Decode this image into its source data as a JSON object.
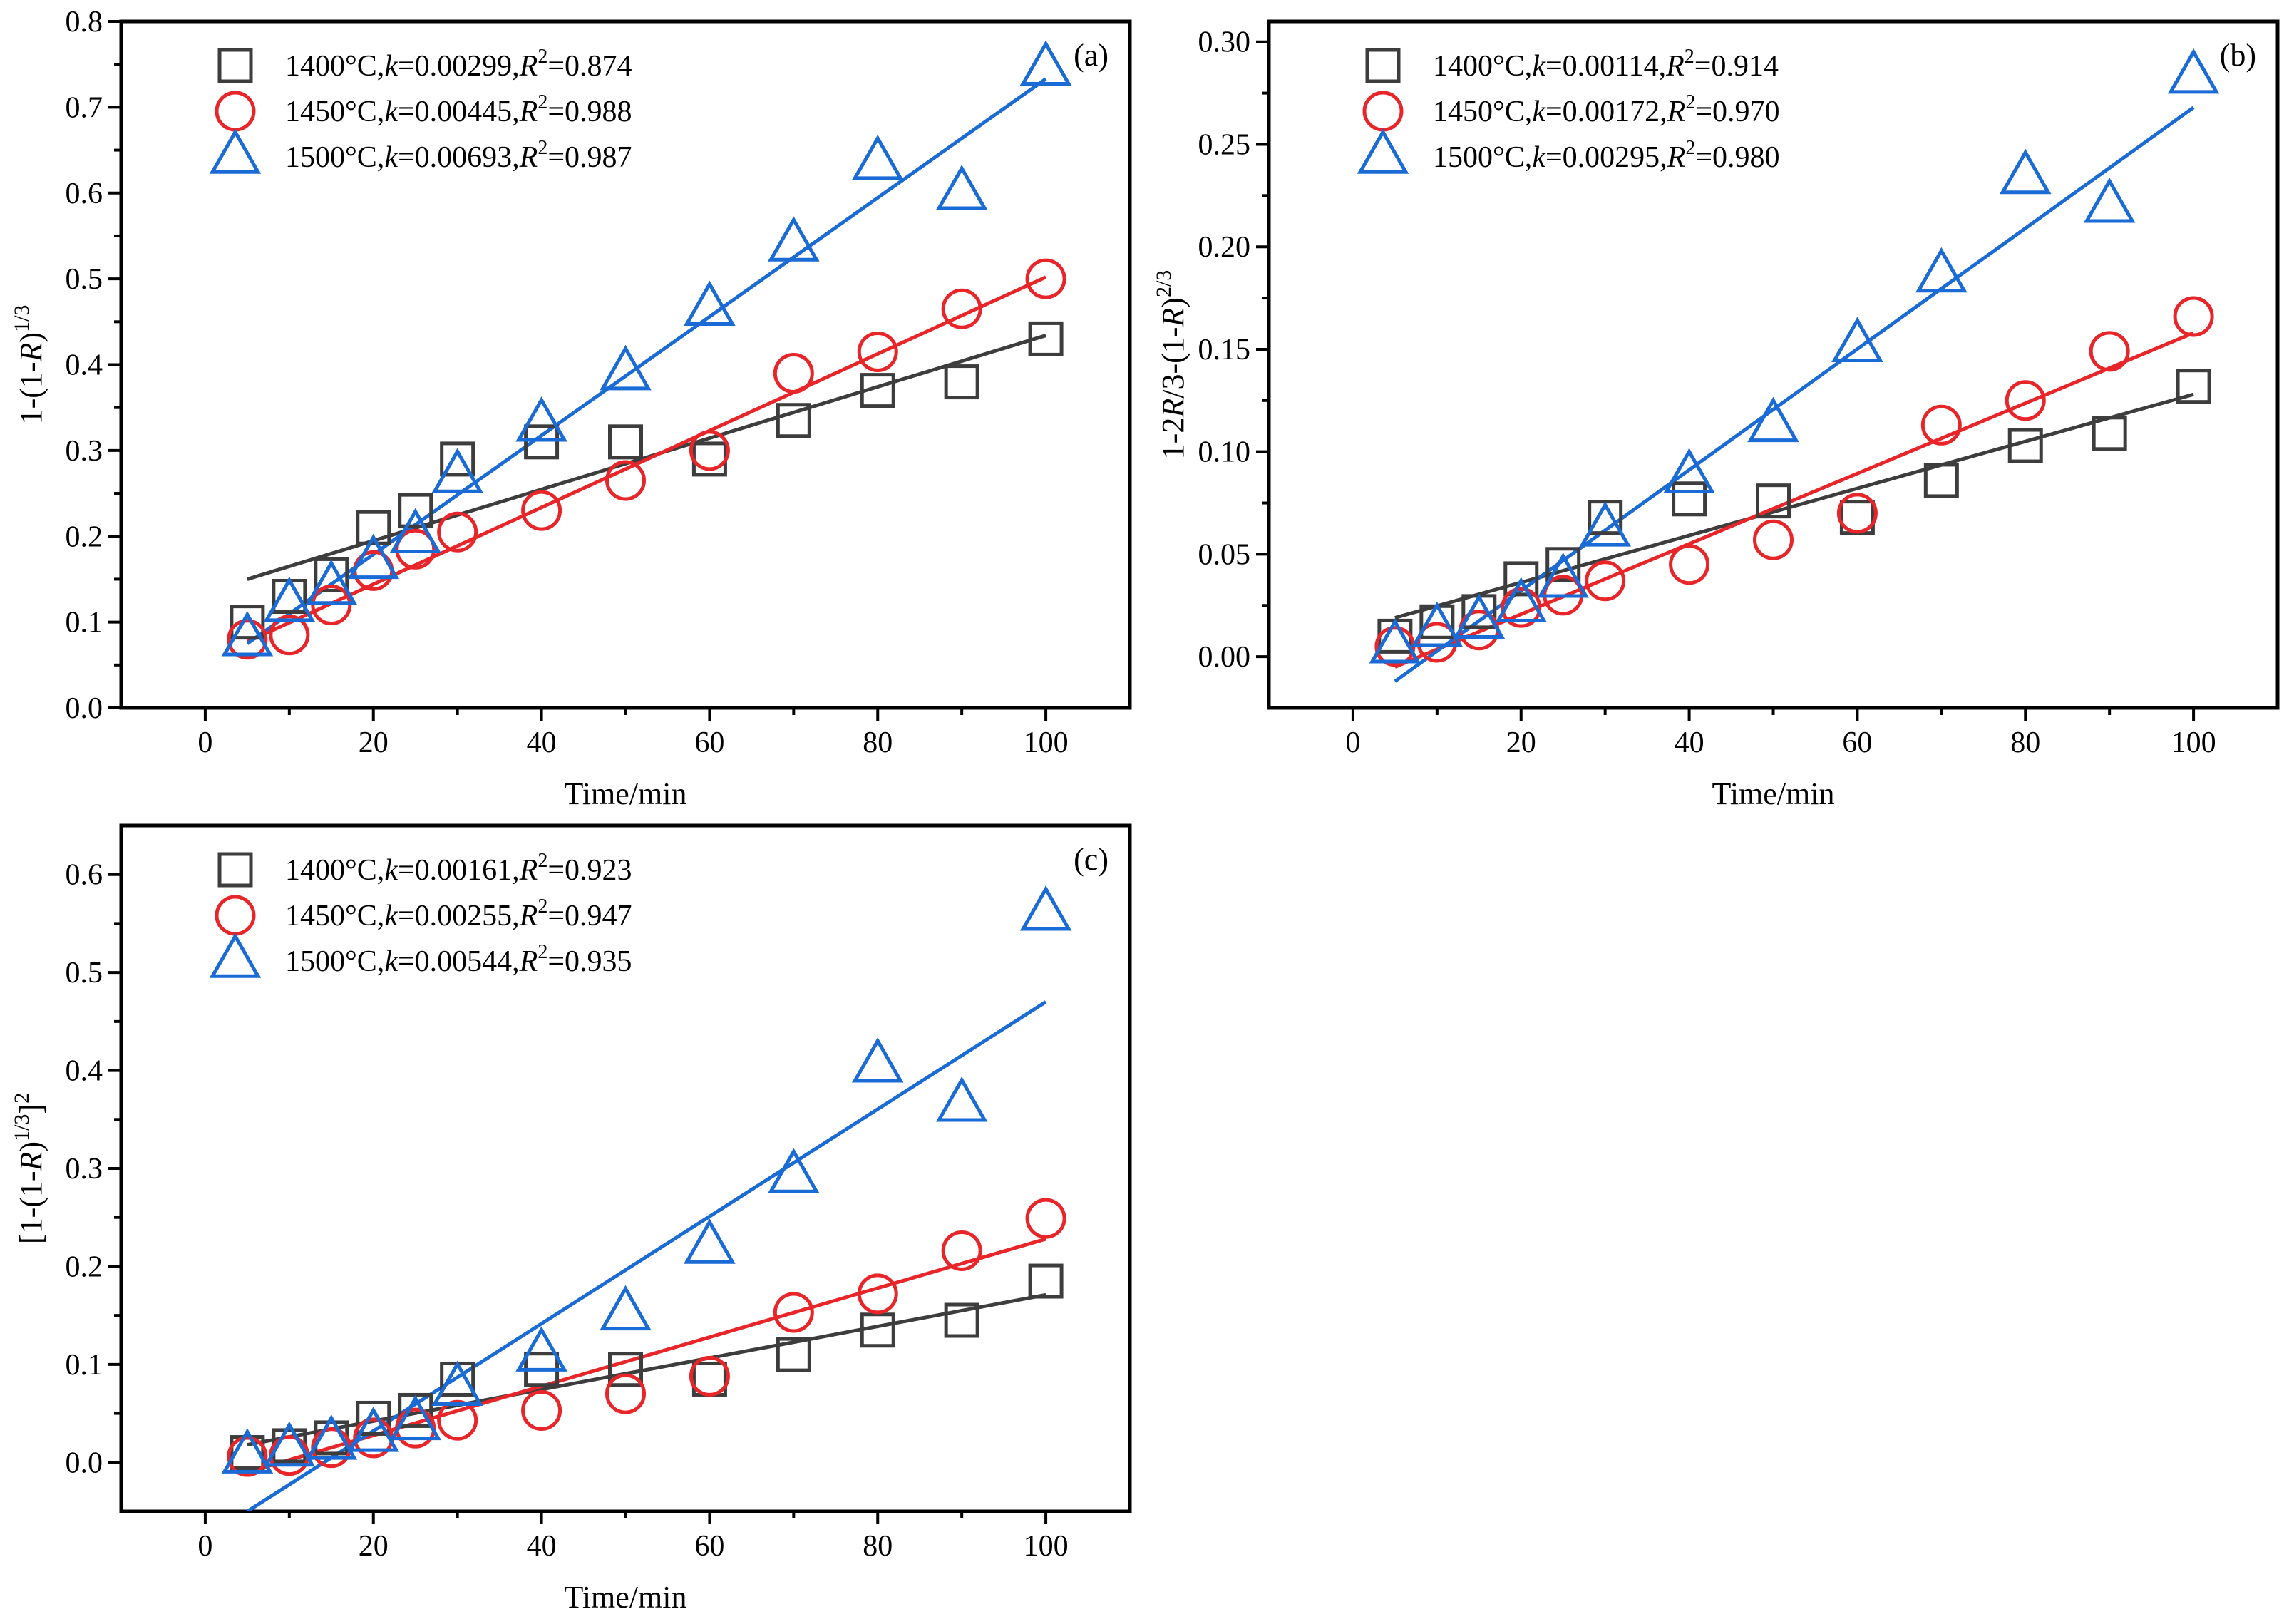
{
  "colors": {
    "s1400": "#3d3d3d",
    "s1450": "#e8262a",
    "s1500": "#1a6bd6"
  },
  "chart_data": [
    {
      "type": "scatter",
      "panel_label": "(a)",
      "xlabel": "Time/min",
      "ylabel": {
        "pre": "1-(1-",
        "it": "R",
        "post": ")",
        "sup": "1/3"
      },
      "xlim": [
        -10,
        110
      ],
      "ylim": [
        0,
        0.8
      ],
      "xticks": [
        0,
        20,
        40,
        60,
        80,
        100
      ],
      "yticks": [
        0.0,
        0.1,
        0.2,
        0.3,
        0.4,
        0.5,
        0.6,
        0.7,
        0.8
      ],
      "ytick_labels": [
        "0.0",
        "0.1",
        "0.2",
        "0.3",
        "0.4",
        "0.5",
        "0.6",
        "0.7",
        "0.8"
      ],
      "legend_position": "top-left",
      "series": [
        {
          "name": "1400°C",
          "marker": "square",
          "color": "#3d3d3d",
          "k": "0.00299",
          "r2": "0.874",
          "x": [
            5,
            10,
            15,
            20,
            25,
            30,
            40,
            50,
            60,
            70,
            80,
            90,
            100
          ],
          "y": [
            0.1,
            0.13,
            0.155,
            0.21,
            0.23,
            0.29,
            0.31,
            0.31,
            0.29,
            0.335,
            0.37,
            0.38,
            0.43
          ],
          "fit": [
            [
              5,
              0.15
            ],
            [
              100,
              0.434
            ]
          ]
        },
        {
          "name": "1450°C",
          "marker": "circle",
          "color": "#e8262a",
          "k": "0.00445",
          "r2": "0.988",
          "x": [
            5,
            10,
            15,
            20,
            25,
            30,
            40,
            50,
            60,
            70,
            80,
            90,
            100
          ],
          "y": [
            0.08,
            0.085,
            0.12,
            0.16,
            0.185,
            0.205,
            0.23,
            0.265,
            0.3,
            0.39,
            0.415,
            0.465,
            0.5
          ],
          "fit": [
            [
              5,
              0.077
            ],
            [
              100,
              0.502
            ]
          ]
        },
        {
          "name": "1500°C",
          "marker": "triangle",
          "color": "#1a6bd6",
          "k": "0.00693",
          "r2": "0.987",
          "x": [
            5,
            10,
            15,
            20,
            25,
            30,
            40,
            50,
            60,
            70,
            80,
            90,
            100
          ],
          "y": [
            0.08,
            0.12,
            0.14,
            0.17,
            0.2,
            0.27,
            0.33,
            0.39,
            0.465,
            0.54,
            0.635,
            0.6,
            0.745
          ],
          "fit": [
            [
              5,
              0.075
            ],
            [
              100,
              0.733
            ]
          ]
        }
      ]
    },
    {
      "type": "scatter",
      "panel_label": "(b)",
      "xlabel": "Time/min",
      "ylabel": {
        "pre": "1-2",
        "it": "R",
        "post": "/3-(1-",
        "it2": "R",
        "post2": ")",
        "sup": "2/3"
      },
      "xlim": [
        -10,
        110
      ],
      "ylim": [
        -0.025,
        0.31
      ],
      "xticks": [
        0,
        20,
        40,
        60,
        80,
        100
      ],
      "yticks": [
        0.0,
        0.05,
        0.1,
        0.15,
        0.2,
        0.25,
        0.3
      ],
      "ytick_labels": [
        "0.00",
        "0.05",
        "0.10",
        "0.15",
        "0.20",
        "0.25",
        "0.30"
      ],
      "legend_position": "top-left",
      "series": [
        {
          "name": "1400°C",
          "marker": "square",
          "color": "#3d3d3d",
          "k": "0.00114",
          "r2": "0.914",
          "x": [
            5,
            10,
            15,
            20,
            25,
            30,
            40,
            50,
            60,
            70,
            80,
            90,
            100
          ],
          "y": [
            0.01,
            0.017,
            0.022,
            0.038,
            0.045,
            0.068,
            0.077,
            0.076,
            0.068,
            0.086,
            0.103,
            0.109,
            0.132
          ],
          "fit": [
            [
              5,
              0.019
            ],
            [
              100,
              0.128
            ]
          ]
        },
        {
          "name": "1450°C",
          "marker": "circle",
          "color": "#e8262a",
          "k": "0.00172",
          "r2": "0.970",
          "x": [
            5,
            10,
            15,
            20,
            25,
            30,
            40,
            50,
            60,
            70,
            80,
            90,
            100
          ],
          "y": [
            0.005,
            0.007,
            0.013,
            0.024,
            0.03,
            0.037,
            0.045,
            0.057,
            0.07,
            0.113,
            0.125,
            0.149,
            0.166
          ],
          "fit": [
            [
              5,
              -0.005
            ],
            [
              100,
              0.158
            ]
          ]
        },
        {
          "name": "1500°C",
          "marker": "triangle",
          "color": "#1a6bd6",
          "k": "0.00295",
          "r2": "0.980",
          "x": [
            5,
            10,
            15,
            20,
            25,
            30,
            40,
            50,
            60,
            70,
            80,
            90,
            100
          ],
          "y": [
            0.005,
            0.013,
            0.017,
            0.025,
            0.037,
            0.062,
            0.088,
            0.113,
            0.152,
            0.186,
            0.234,
            0.22,
            0.283
          ],
          "fit": [
            [
              5,
              -0.012
            ],
            [
              100,
              0.268
            ]
          ]
        }
      ]
    },
    {
      "type": "scatter",
      "panel_label": "(c)",
      "xlabel": "Time/min",
      "ylabel": {
        "pre": "[1-(1-",
        "it": "R",
        "post": ")",
        "sup": "1/3",
        "post2": "]",
        "sup2": "2"
      },
      "xlim": [
        -10,
        110
      ],
      "ylim": [
        -0.05,
        0.65
      ],
      "xticks": [
        0,
        20,
        40,
        60,
        80,
        100
      ],
      "yticks": [
        0.0,
        0.1,
        0.2,
        0.3,
        0.4,
        0.5,
        0.6
      ],
      "ytick_labels": [
        "0.0",
        "0.1",
        "0.2",
        "0.3",
        "0.4",
        "0.5",
        "0.6"
      ],
      "legend_position": "top-left",
      "series": [
        {
          "name": "1400°C",
          "marker": "square",
          "color": "#3d3d3d",
          "k": "0.00161",
          "r2": "0.923",
          "x": [
            5,
            10,
            15,
            20,
            25,
            30,
            40,
            50,
            60,
            70,
            80,
            90,
            100
          ],
          "y": [
            0.01,
            0.017,
            0.025,
            0.045,
            0.053,
            0.085,
            0.095,
            0.095,
            0.085,
            0.11,
            0.135,
            0.145,
            0.185
          ],
          "fit": [
            [
              5,
              0.018
            ],
            [
              100,
              0.171
            ]
          ]
        },
        {
          "name": "1450°C",
          "marker": "circle",
          "color": "#e8262a",
          "k": "0.00255",
          "r2": "0.947",
          "x": [
            5,
            10,
            15,
            20,
            25,
            30,
            40,
            50,
            60,
            70,
            80,
            90,
            100
          ],
          "y": [
            0.006,
            0.007,
            0.015,
            0.025,
            0.035,
            0.043,
            0.053,
            0.07,
            0.088,
            0.153,
            0.172,
            0.216,
            0.249
          ],
          "fit": [
            [
              5,
              -0.01
            ],
            [
              100,
              0.228
            ]
          ]
        },
        {
          "name": "1500°C",
          "marker": "triangle",
          "color": "#1a6bd6",
          "k": "0.00544",
          "r2": "0.935",
          "x": [
            5,
            10,
            15,
            20,
            25,
            30,
            40,
            50,
            60,
            70,
            80,
            90,
            100
          ],
          "y": [
            0.006,
            0.013,
            0.02,
            0.028,
            0.04,
            0.075,
            0.11,
            0.152,
            0.22,
            0.292,
            0.405,
            0.365,
            0.56
          ],
          "fit": [
            [
              5,
              -0.05
            ],
            [
              100,
              0.47
            ]
          ]
        }
      ]
    }
  ]
}
